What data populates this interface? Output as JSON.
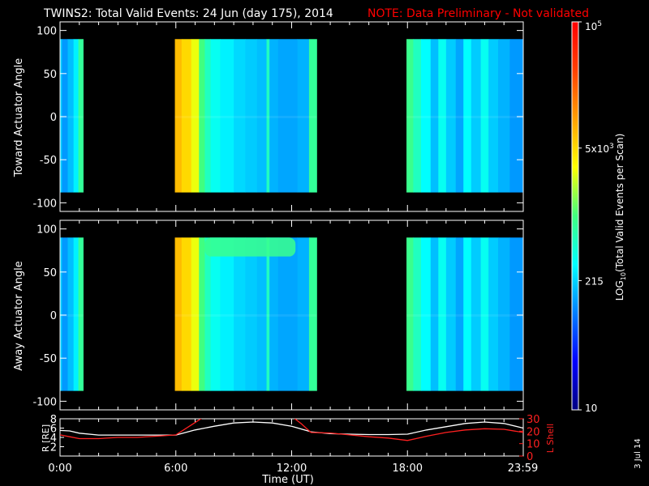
{
  "title": "TWINS2: Total Valid Events: 24 Jun (day 175), 2014",
  "note": "NOTE: Data Preliminary - Not validated",
  "footer_date": "3 Jul 14",
  "colors": {
    "note": "#ff0000",
    "lshell": "#ff2020",
    "radius": "#ffffff",
    "axes": "#ffffff",
    "nodata": "#000000"
  },
  "chart_data": [
    {
      "type": "heatmap",
      "panel": "toward",
      "ylabel": "Toward Actuator Angle",
      "ylim": [
        -110,
        110
      ],
      "yticks": [
        "100",
        "50",
        "0",
        "-50",
        "-100"
      ],
      "ytick_values": [
        100,
        50,
        0,
        -50,
        -100
      ],
      "xlim": [
        0,
        24
      ],
      "angle_range": [
        -88,
        90
      ],
      "data_segments_hours": [
        [
          0.0,
          1.2
        ],
        [
          5.95,
          13.3
        ],
        [
          17.95,
          24.0
        ]
      ],
      "color_scale": "log",
      "value_note": "log10 events per scan, estimated by band",
      "bands": [
        {
          "x": [
            0.0,
            0.1
          ],
          "v": 2.3
        },
        {
          "x": [
            0.1,
            0.4
          ],
          "v": 2.1
        },
        {
          "x": [
            0.4,
            0.7
          ],
          "v": 2.25
        },
        {
          "x": [
            0.7,
            0.95
          ],
          "v": 2.45
        },
        {
          "x": [
            0.95,
            1.2
          ],
          "v": 2.9
        },
        {
          "x": [
            5.95,
            6.3
          ],
          "v": 3.85
        },
        {
          "x": [
            6.3,
            6.8
          ],
          "v": 3.7
        },
        {
          "x": [
            6.8,
            7.2
          ],
          "v": 3.45
        },
        {
          "x": [
            7.2,
            7.5
          ],
          "v": 3.0
        },
        {
          "x": [
            7.5,
            7.8
          ],
          "v": 2.75
        },
        {
          "x": [
            7.8,
            8.3
          ],
          "v": 2.55
        },
        {
          "x": [
            8.3,
            9.0
          ],
          "v": 2.45
        },
        {
          "x": [
            9.0,
            9.6
          ],
          "v": 2.35
        },
        {
          "x": [
            9.6,
            10.2
          ],
          "v": 2.3
        },
        {
          "x": [
            10.2,
            10.7
          ],
          "v": 2.25
        },
        {
          "x": [
            10.7,
            10.85
          ],
          "v": 2.75
        },
        {
          "x": [
            10.85,
            11.3
          ],
          "v": 2.2
        },
        {
          "x": [
            11.3,
            12.3
          ],
          "v": 2.15
        },
        {
          "x": [
            12.3,
            12.9
          ],
          "v": 2.2
        },
        {
          "x": [
            12.9,
            13.3
          ],
          "v": 2.9
        },
        {
          "x": [
            17.95,
            18.3
          ],
          "v": 2.95
        },
        {
          "x": [
            18.3,
            18.7
          ],
          "v": 2.75
        },
        {
          "x": [
            18.7,
            19.2
          ],
          "v": 2.5
        },
        {
          "x": [
            19.2,
            19.6
          ],
          "v": 2.25
        },
        {
          "x": [
            19.6,
            20.0
          ],
          "v": 2.55
        },
        {
          "x": [
            20.0,
            20.5
          ],
          "v": 2.3
        },
        {
          "x": [
            20.5,
            20.9
          ],
          "v": 2.15
        },
        {
          "x": [
            20.9,
            21.3
          ],
          "v": 2.5
        },
        {
          "x": [
            21.3,
            21.8
          ],
          "v": 2.3
        },
        {
          "x": [
            21.8,
            22.2
          ],
          "v": 2.55
        },
        {
          "x": [
            22.2,
            22.7
          ],
          "v": 2.3
        },
        {
          "x": [
            22.7,
            23.3
          ],
          "v": 2.2
        },
        {
          "x": [
            23.3,
            24.0
          ],
          "v": 2.1
        }
      ]
    },
    {
      "type": "heatmap",
      "panel": "away",
      "ylabel": "Away Actuator Angle",
      "ylim": [
        -110,
        110
      ],
      "yticks": [
        "100",
        "50",
        "0",
        "-50",
        "-100"
      ],
      "ytick_values": [
        100,
        50,
        0,
        -50,
        -100
      ],
      "xlim": [
        0,
        24
      ],
      "angle_range": [
        -88,
        90
      ],
      "data_segments_hours": [
        [
          0.0,
          1.2
        ],
        [
          5.95,
          13.3
        ],
        [
          17.95,
          24.0
        ]
      ],
      "color_scale": "log",
      "value_note": "log10 events per scan, estimated by band",
      "bands": [
        {
          "x": [
            0.0,
            0.1
          ],
          "v": 2.3
        },
        {
          "x": [
            0.1,
            0.4
          ],
          "v": 2.1
        },
        {
          "x": [
            0.4,
            0.7
          ],
          "v": 2.25
        },
        {
          "x": [
            0.7,
            0.95
          ],
          "v": 2.45
        },
        {
          "x": [
            0.95,
            1.2
          ],
          "v": 2.9
        },
        {
          "x": [
            5.95,
            6.3
          ],
          "v": 3.85
        },
        {
          "x": [
            6.3,
            6.8
          ],
          "v": 3.7
        },
        {
          "x": [
            6.8,
            7.2
          ],
          "v": 3.45
        },
        {
          "x": [
            7.2,
            7.5
          ],
          "v": 3.0
        },
        {
          "x": [
            7.5,
            7.8
          ],
          "v": 2.75
        },
        {
          "x": [
            7.8,
            8.3
          ],
          "v": 2.55
        },
        {
          "x": [
            8.3,
            9.0
          ],
          "v": 2.45
        },
        {
          "x": [
            9.0,
            9.6
          ],
          "v": 2.35
        },
        {
          "x": [
            9.6,
            10.2
          ],
          "v": 2.3
        },
        {
          "x": [
            10.2,
            10.7
          ],
          "v": 2.25
        },
        {
          "x": [
            10.7,
            10.85
          ],
          "v": 2.75
        },
        {
          "x": [
            10.85,
            11.3
          ],
          "v": 2.2
        },
        {
          "x": [
            11.3,
            12.3
          ],
          "v": 2.15
        },
        {
          "x": [
            12.3,
            12.9
          ],
          "v": 2.2
        },
        {
          "x": [
            12.9,
            13.3
          ],
          "v": 2.9
        },
        {
          "x": [
            17.95,
            18.3
          ],
          "v": 2.95
        },
        {
          "x": [
            18.3,
            18.7
          ],
          "v": 2.75
        },
        {
          "x": [
            18.7,
            19.2
          ],
          "v": 2.5
        },
        {
          "x": [
            19.2,
            19.6
          ],
          "v": 2.25
        },
        {
          "x": [
            19.6,
            20.0
          ],
          "v": 2.55
        },
        {
          "x": [
            20.0,
            20.5
          ],
          "v": 2.3
        },
        {
          "x": [
            20.5,
            20.9
          ],
          "v": 2.15
        },
        {
          "x": [
            20.9,
            21.3
          ],
          "v": 2.5
        },
        {
          "x": [
            21.3,
            21.8
          ],
          "v": 2.3
        },
        {
          "x": [
            21.8,
            22.2
          ],
          "v": 2.55
        },
        {
          "x": [
            22.2,
            22.7
          ],
          "v": 2.3
        },
        {
          "x": [
            22.7,
            23.3
          ],
          "v": 2.2
        },
        {
          "x": [
            23.3,
            24.0
          ],
          "v": 2.1
        }
      ],
      "enhancement": {
        "x": [
          7.5,
          12.2
        ],
        "angle": [
          68,
          90
        ],
        "v": 2.95
      }
    },
    {
      "type": "line",
      "panel": "orbit",
      "ylabel": "R [RE]",
      "ylabel_right": "L Shell",
      "xlabel": "Time (UT)",
      "xticks": [
        "0:00",
        "6:00",
        "12:00",
        "18:00",
        "23:59"
      ],
      "xtick_values": [
        0,
        6,
        12,
        18,
        23.98
      ],
      "xlim": [
        0,
        24
      ],
      "ylim_left": [
        0,
        8
      ],
      "yticks_left": [
        "8",
        "6",
        "4",
        "2"
      ],
      "ytick_values_left": [
        8,
        6,
        4,
        2
      ],
      "ylim_right": [
        0,
        30
      ],
      "yticks_right": [
        "30",
        "20",
        "10",
        "0"
      ],
      "ytick_values_right": [
        30,
        20,
        10,
        0
      ],
      "series": [
        {
          "name": "R [RE]",
          "axis": "left",
          "color": "#ffffff",
          "x": [
            0,
            0.5,
            1,
            2,
            3,
            4,
            5,
            6,
            7,
            8,
            9,
            10,
            11,
            12,
            13,
            14,
            15,
            16,
            17,
            18,
            19,
            20,
            21,
            22,
            23,
            24
          ],
          "y": [
            5.5,
            5.4,
            4.9,
            4.5,
            4.5,
            4.5,
            4.5,
            4.5,
            5.6,
            6.4,
            7.1,
            7.3,
            7.1,
            6.4,
            5.2,
            4.8,
            4.7,
            4.6,
            4.6,
            4.7,
            5.6,
            6.3,
            7.0,
            7.3,
            7.0,
            6.0
          ]
        },
        {
          "name": "L Shell",
          "axis": "right",
          "color": "#ff2020",
          "x": [
            0,
            0.5,
            1,
            2,
            3,
            4,
            5,
            6,
            6.8,
            7.5,
            12,
            12.5,
            13,
            14,
            15,
            16,
            17,
            18,
            19,
            20,
            21,
            22,
            23,
            24
          ],
          "y": [
            17,
            15.5,
            14,
            14,
            15,
            15,
            16,
            17,
            25,
            32,
            32,
            26,
            19,
            18.5,
            17,
            15.5,
            14.5,
            12.5,
            16,
            19,
            21,
            22,
            21.5,
            19
          ]
        }
      ]
    },
    {
      "type": "colorbar",
      "label": "LOG10(Total Valid Events per Scan)",
      "scale": "log",
      "range": [
        10,
        100000
      ],
      "ticks": [
        "10",
        "215",
        "5x10^3",
        "10^5"
      ],
      "tick_values": [
        10,
        215,
        5000,
        100000
      ]
    }
  ]
}
